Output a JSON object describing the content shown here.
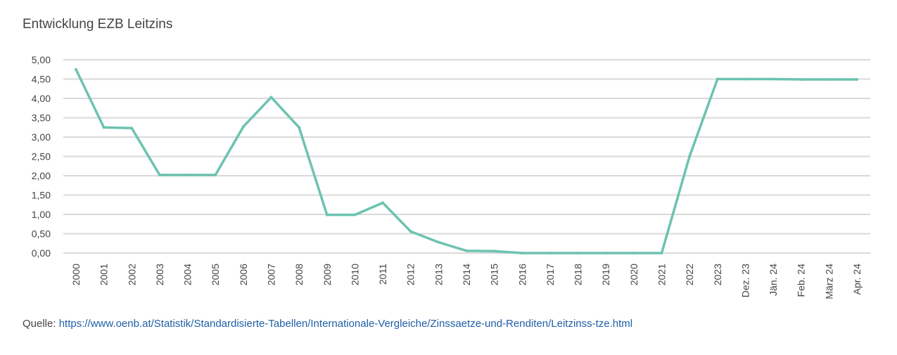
{
  "chart_data": {
    "type": "line",
    "title": "Entwicklung EZB Leitzins",
    "xlabel": "",
    "ylabel": "",
    "ylim": [
      0,
      5
    ],
    "yticks": [
      "0,00",
      "0,50",
      "1,00",
      "1,50",
      "2,00",
      "2,50",
      "3,00",
      "3,50",
      "4,00",
      "4,50",
      "5,00"
    ],
    "grid": true,
    "line_color": "#6cc3b0",
    "grid_color": "#d9d9d9",
    "categories": [
      "2000",
      "2001",
      "2002",
      "2003",
      "2004",
      "2005",
      "2006",
      "2007",
      "2008",
      "2009",
      "2010",
      "2011",
      "2012",
      "2013",
      "2014",
      "2015",
      "2016",
      "2017",
      "2018",
      "2019",
      "2020",
      "2021",
      "2022",
      "2023",
      "Dez. 23",
      "Jän. 24",
      "Feb. 24",
      "März 24",
      "Apr. 24"
    ],
    "series": [
      {
        "values": [
          4.75,
          3.25,
          3.23,
          2.02,
          2.02,
          2.02,
          3.27,
          4.03,
          3.25,
          0.99,
          0.99,
          1.3,
          0.56,
          0.28,
          0.06,
          0.05,
          0.0,
          0.0,
          0.0,
          0.0,
          0.0,
          0.0,
          2.5,
          4.5,
          4.5,
          4.5,
          4.49,
          4.49,
          4.49
        ]
      }
    ]
  },
  "source": {
    "label": "Quelle:",
    "url_text": "https://www.oenb.at/Statistik/Standardisierte-Tabellen/Internationale-Vergleiche/Zinssaetze-und-Renditen/Leitzinss-tze.html"
  }
}
